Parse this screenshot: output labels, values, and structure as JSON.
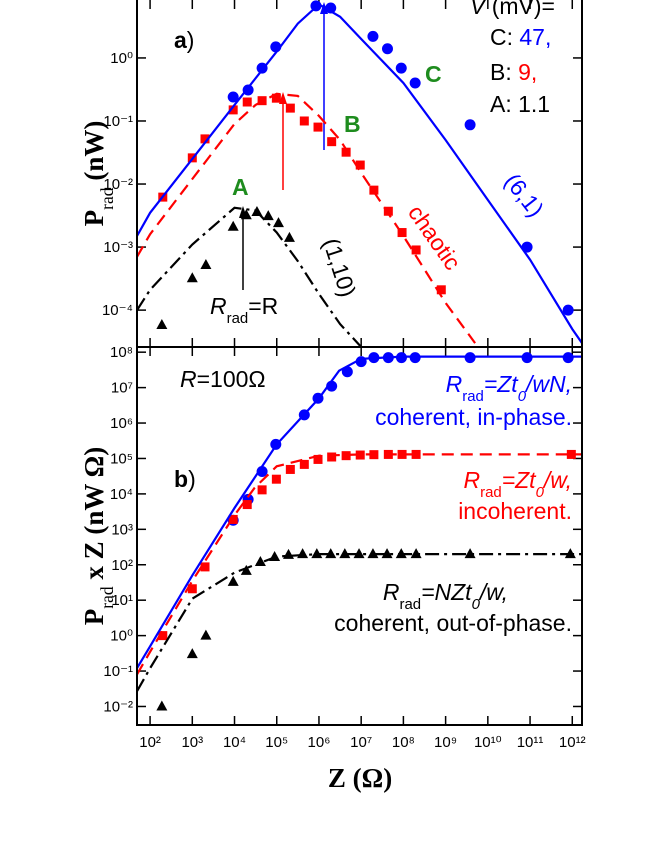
{
  "chart_data": [
    {
      "type": "line",
      "xscale": "log",
      "yscale": "log",
      "xlim": [
        49,
        1700000000000
      ],
      "ylim": [
        2.6e-05,
        8.3
      ],
      "xticks": [
        100,
        1000,
        10000,
        100000,
        1000000,
        10000000,
        100000000,
        1000000000,
        10000000000,
        100000000000,
        1000000000000
      ],
      "yticks": [
        {
          "value": 1,
          "label": "10⁰"
        },
        {
          "value": 0.1,
          "label": "10⁻¹"
        },
        {
          "value": 0.01,
          "label": "10⁻²"
        },
        {
          "value": 0.001,
          "label": "10⁻³"
        },
        {
          "value": 0.0001,
          "label": "10⁻⁴"
        }
      ],
      "y_label": [
        "P",
        "rad",
        " (nW)"
      ],
      "panel_label": [
        "a",
        ")"
      ],
      "legend_title": [
        "V",
        " (mV)="
      ],
      "legend_entries": [
        [
          "C: ",
          "47,"
        ],
        [
          "B:  ",
          "9,"
        ],
        [
          "A: ",
          "1.1"
        ]
      ],
      "resistance_label": [
        "R",
        "rad",
        "=R"
      ],
      "name_color": "#1e8c1e",
      "series": [
        {
          "name": "C",
          "color": "#0000ff",
          "marker": "circle",
          "x": [
            9300,
            21000,
            45000,
            95000,
            850000,
            1900000,
            19000000,
            42000000,
            89000000,
            190000000,
            3800000000,
            85000000000,
            800000000000
          ],
          "values": [
            0.24,
            0.31,
            0.69,
            1.5,
            6.7,
            6.2,
            2.2,
            1.4,
            0.69,
            0.4,
            0.087,
            0.001,
            0.0001
          ]
        },
        {
          "name": "B",
          "color": "#ff0000",
          "marker": "square",
          "x": [
            200,
            1000,
            2000,
            9300,
            20000,
            45000,
            98000,
            210000,
            450000,
            950000,
            2000000,
            4400000,
            9500000,
            20000000,
            44000000,
            93000000,
            200000000,
            790000000
          ],
          "values": [
            0.0062,
            0.026,
            0.052,
            0.15,
            0.2,
            0.21,
            0.23,
            0.16,
            0.1,
            0.08,
            0.047,
            0.032,
            0.02,
            0.008,
            0.0037,
            0.0017,
            0.0009,
            0.00021
          ]
        },
        {
          "name": "A",
          "color": "#000000",
          "marker": "triangle",
          "x": [
            190,
            1000,
            2100,
            9300,
            19000,
            34000,
            63000,
            110000,
            200000
          ],
          "values": [
            5.8e-05,
            0.00032,
            0.00052,
            0.0021,
            0.0032,
            0.0036,
            0.0031,
            0.0024,
            0.0014
          ]
        },
        {
          "name": "(6,1)",
          "color": "#0000ff",
          "line_style": "solid",
          "x": [
            49,
            100,
            1000,
            10000,
            100000,
            316000,
            1000000,
            3160000,
            10000000,
            100000000,
            1000000000,
            10000000000,
            100000000000,
            1000000000000,
            1700000000000
          ],
          "values": [
            0.0015,
            0.0035,
            0.025,
            0.18,
            1.26,
            3.5,
            7.1,
            4.5,
            2,
            0.4,
            0.05,
            0.0056,
            0.00063,
            5e-05,
            3e-05
          ]
        },
        {
          "name": "chaotic",
          "color": "#ff0000",
          "line_style": "dashed",
          "x": [
            49,
            100,
            1000,
            10000,
            31600,
            100000,
            316000,
            1000000,
            3160000,
            10000000,
            100000000,
            1000000000,
            5000000000
          ],
          "values": [
            0.0007,
            0.0016,
            0.012,
            0.09,
            0.18,
            0.27,
            0.25,
            0.12,
            0.05,
            0.015,
            0.0015,
            0.00013,
            3e-05
          ]
        },
        {
          "name": "(1,10)",
          "color": "#000000",
          "line_style": "dashdot",
          "x": [
            49,
            100,
            1000,
            10000,
            31600,
            100000,
            316000,
            1000000,
            3160000,
            10000000
          ],
          "values": [
            0.0001,
            0.00021,
            0.0011,
            0.0042,
            0.0038,
            0.0017,
            0.0006,
            0.00018,
            6e-05,
            2.6e-05
          ]
        }
      ]
    },
    {
      "type": "line",
      "xscale": "log",
      "yscale": "log",
      "xlim": [
        49,
        1700000000000
      ],
      "ylim": [
        0.003,
        140000000
      ],
      "xticks": [
        {
          "value": 100,
          "label": "10²"
        },
        {
          "value": 1000,
          "label": "10³"
        },
        {
          "value": 10000,
          "label": "10⁴"
        },
        {
          "value": 100000,
          "label": "10⁵"
        },
        {
          "value": 1000000,
          "label": "10⁶"
        },
        {
          "value": 10000000,
          "label": "10⁷"
        },
        {
          "value": 100000000,
          "label": "10⁸"
        },
        {
          "value": 1000000000,
          "label": "10⁹"
        },
        {
          "value": 10000000000,
          "label": "10¹⁰"
        },
        {
          "value": 100000000000,
          "label": "10¹¹"
        },
        {
          "value": 1000000000000,
          "label": "10¹²"
        }
      ],
      "yticks": [
        {
          "value": 100000000,
          "label": "10⁸"
        },
        {
          "value": 10000000,
          "label": "10⁷"
        },
        {
          "value": 1000000,
          "label": "10⁶"
        },
        {
          "value": 100000,
          "label": "10⁵"
        },
        {
          "value": 10000,
          "label": "10⁴"
        },
        {
          "value": 1000,
          "label": "10³"
        },
        {
          "value": 100,
          "label": "10²"
        },
        {
          "value": 10,
          "label": "10¹"
        },
        {
          "value": 1,
          "label": "10⁰"
        },
        {
          "value": 0.1,
          "label": "10⁻¹"
        },
        {
          "value": 0.01,
          "label": "10⁻²"
        }
      ],
      "y_label": [
        "P",
        "rad",
        " x Z (nW Ω)"
      ],
      "x_label": [
        "Z",
        " (Ω)"
      ],
      "panel_label": [
        "b",
        ")"
      ],
      "resistance_label": [
        "R",
        "=100Ω"
      ],
      "notes": [
        {
          "color": "#0000ff",
          "lines": [
            [
              "R",
              "rad",
              "=Zt",
              "0",
              "/wN,"
            ],
            [
              "coherent, in-phase."
            ]
          ]
        },
        {
          "color": "#ff0000",
          "lines": [
            [
              "R",
              "rad",
              "=Zt",
              "0",
              "/w,"
            ],
            [
              "incoherent."
            ]
          ]
        },
        {
          "color": "#000000",
          "lines": [
            [
              "R",
              "rad",
              "=NZt",
              "0",
              "/w,"
            ],
            [
              "coherent, out-of-phase."
            ]
          ]
        }
      ],
      "series": [
        {
          "color": "#0000ff",
          "marker": "circle",
          "x": [
            9300,
            21000,
            45000,
            95000,
            450000,
            950000,
            2000000,
            4700000,
            10000000,
            20000000,
            44000000,
            90000000,
            190000000,
            3800000000,
            85000000000,
            800000000000
          ],
          "values": [
            1800,
            7000,
            43000,
            250000,
            1700000,
            5000000,
            11000000,
            28000000,
            54000000,
            70000000,
            70000000,
            70000000,
            70000000,
            70000000,
            70000000,
            70000000
          ]
        },
        {
          "color": "#ff0000",
          "marker": "square",
          "x": [
            200,
            1000,
            2000,
            9300,
            20000,
            45000,
            98000,
            210000,
            450000,
            950000,
            2000000,
            4400000,
            9500000,
            20000000,
            44000000,
            93000000,
            200000000,
            950000000000
          ],
          "values": [
            1,
            21,
            87,
            1900,
            5000,
            13000,
            26000,
            49000,
            68000,
            94000,
            110000,
            120000,
            125000,
            128000,
            130000,
            130000,
            130000,
            130000
          ]
        },
        {
          "color": "#000000",
          "marker": "triangle",
          "x": [
            190,
            1000,
            2100,
            9300,
            19000,
            41000,
            89000,
            190000,
            410000,
            890000,
            1900000,
            4100000,
            8900000,
            19000000,
            41000000,
            89000000,
            200000000,
            3800000000,
            900000000000
          ],
          "values": [
            0.01,
            0.3,
            1,
            33,
            67,
            120,
            165,
            190,
            200,
            200,
            200,
            200,
            200,
            200,
            200,
            200,
            200,
            200,
            200
          ]
        },
        {
          "color": "#0000ff",
          "line_style": "solid",
          "x": [
            49,
            100,
            1000,
            10000,
            100000,
            1000000,
            3000000,
            10000000,
            100000000,
            1700000000000
          ],
          "values": [
            0.12,
            0.5,
            50,
            4000,
            250000,
            5000000,
            30000000,
            65000000,
            75000000,
            75000000
          ]
        },
        {
          "color": "#ff0000",
          "line_style": "dashed",
          "x": [
            49,
            100,
            1000,
            10000,
            30000,
            100000,
            1000000,
            10000000,
            1700000000000
          ],
          "values": [
            0.08,
            0.35,
            35,
            2500,
            15000,
            60000,
            120000,
            130000,
            130000
          ]
        },
        {
          "color": "#000000",
          "line_style": "dashdot",
          "x": [
            49,
            100,
            1000,
            10000,
            100000,
            1000000,
            1700000000000
          ],
          "values": [
            0.027,
            0.12,
            11,
            60,
            170,
            200,
            200
          ]
        }
      ]
    }
  ]
}
